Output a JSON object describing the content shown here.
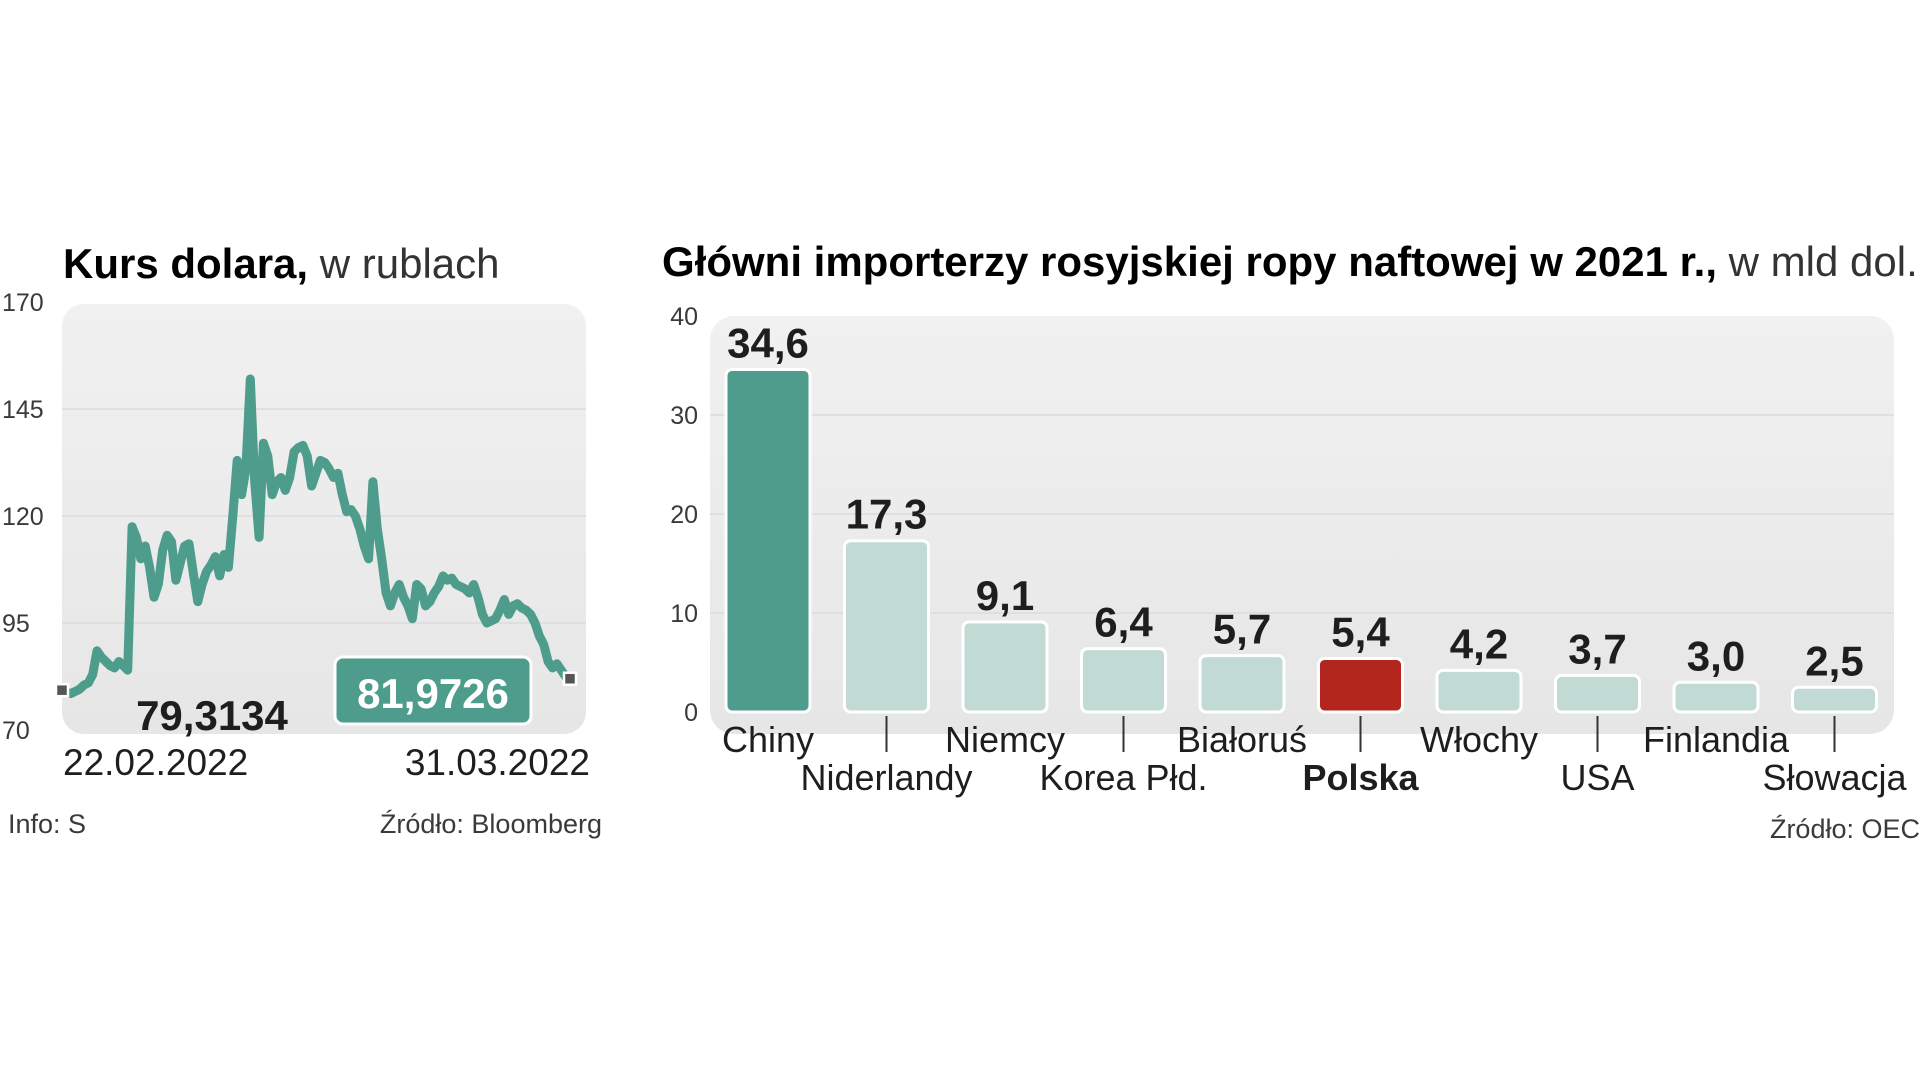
{
  "left": {
    "title_bold": "Kurs dolara,",
    "title_rest": " w rublach",
    "chart_data": {
      "type": "line",
      "ylim": [
        70,
        170
      ],
      "yticks": [
        "170",
        "145",
        "120",
        "95",
        "70"
      ],
      "x_start_label": "22.02.2022",
      "x_end_label": "31.03.2022",
      "start_value_label": "79,3134",
      "end_value_label": "81,9726",
      "values": [
        79.3,
        78.8,
        78.5,
        79.0,
        79.5,
        80.5,
        81.0,
        83.0,
        88.5,
        87.0,
        86.0,
        85.0,
        84.5,
        86.0,
        85.0,
        84.0,
        117.5,
        115.0,
        110.0,
        113.0,
        108.0,
        101.0,
        104.0,
        112.0,
        115.5,
        114.0,
        105.0,
        109.0,
        113.0,
        113.5,
        106.5,
        100.0,
        104.0,
        107.0,
        108.5,
        110.5,
        106.0,
        111.0,
        108.0,
        120.0,
        133.0,
        125.0,
        131.0,
        152.0,
        128.0,
        115.0,
        137.0,
        134.0,
        125.0,
        128.0,
        129.0,
        126.0,
        129.0,
        135.0,
        136.0,
        136.5,
        134.0,
        127.0,
        130.0,
        133.0,
        132.5,
        131.0,
        129.0,
        130.0,
        125.0,
        121.0,
        121.5,
        120.0,
        117.0,
        113.0,
        110.0,
        128.0,
        117.0,
        110.0,
        102.0,
        99.0,
        102.0,
        104.0,
        101.0,
        99.0,
        96.0,
        104.0,
        103.0,
        99.0,
        100.0,
        102.0,
        103.5,
        106.0,
        105.0,
        105.5,
        104.0,
        103.5,
        103.0,
        102.0,
        104.0,
        101.0,
        97.0,
        95.0,
        95.5,
        96.0,
        98.0,
        100.5,
        97.0,
        99.0,
        99.5,
        98.5,
        98.0,
        97.0,
        95.0,
        92.0,
        90.0,
        86.0,
        84.5,
        85.5,
        84.0,
        82.5,
        81.9726
      ],
      "colors": {
        "line": "#4e9c8c",
        "badge": "#4e9c8c",
        "badge_text": "#ffffff"
      }
    },
    "source_left": "Info: S",
    "source_right": "Źródło: Bloomberg"
  },
  "right": {
    "title_bold": "Główni importerzy rosyjskiej ropy naftowej w 2021 r.,",
    "title_rest": " w mld dol.",
    "chart_data": {
      "type": "bar",
      "ylim": [
        0,
        40
      ],
      "yticks": [
        "40",
        "30",
        "20",
        "10",
        "0"
      ],
      "categories": [
        "Chiny",
        "Niderlandy",
        "Niemcy",
        "Korea Płd.",
        "Białoruś",
        "Polska",
        "Włochy",
        "USA",
        "Finlandia",
        "Słowacja"
      ],
      "values": [
        34.6,
        17.3,
        9.1,
        6.4,
        5.7,
        5.4,
        4.2,
        3.7,
        3.0,
        2.5
      ],
      "value_labels": [
        "34,6",
        "17,3",
        "9,1",
        "6,4",
        "5,7",
        "5,4",
        "4,2",
        "3,7",
        "3,0",
        "2,5"
      ],
      "highlight": {
        "Chiny": "#4e9c8c",
        "Polska": "#b3261e"
      },
      "colors": {
        "default_bar": "#c1dbd4",
        "bar_border": "#ffffff"
      }
    },
    "source": "Źródło: OEC"
  }
}
